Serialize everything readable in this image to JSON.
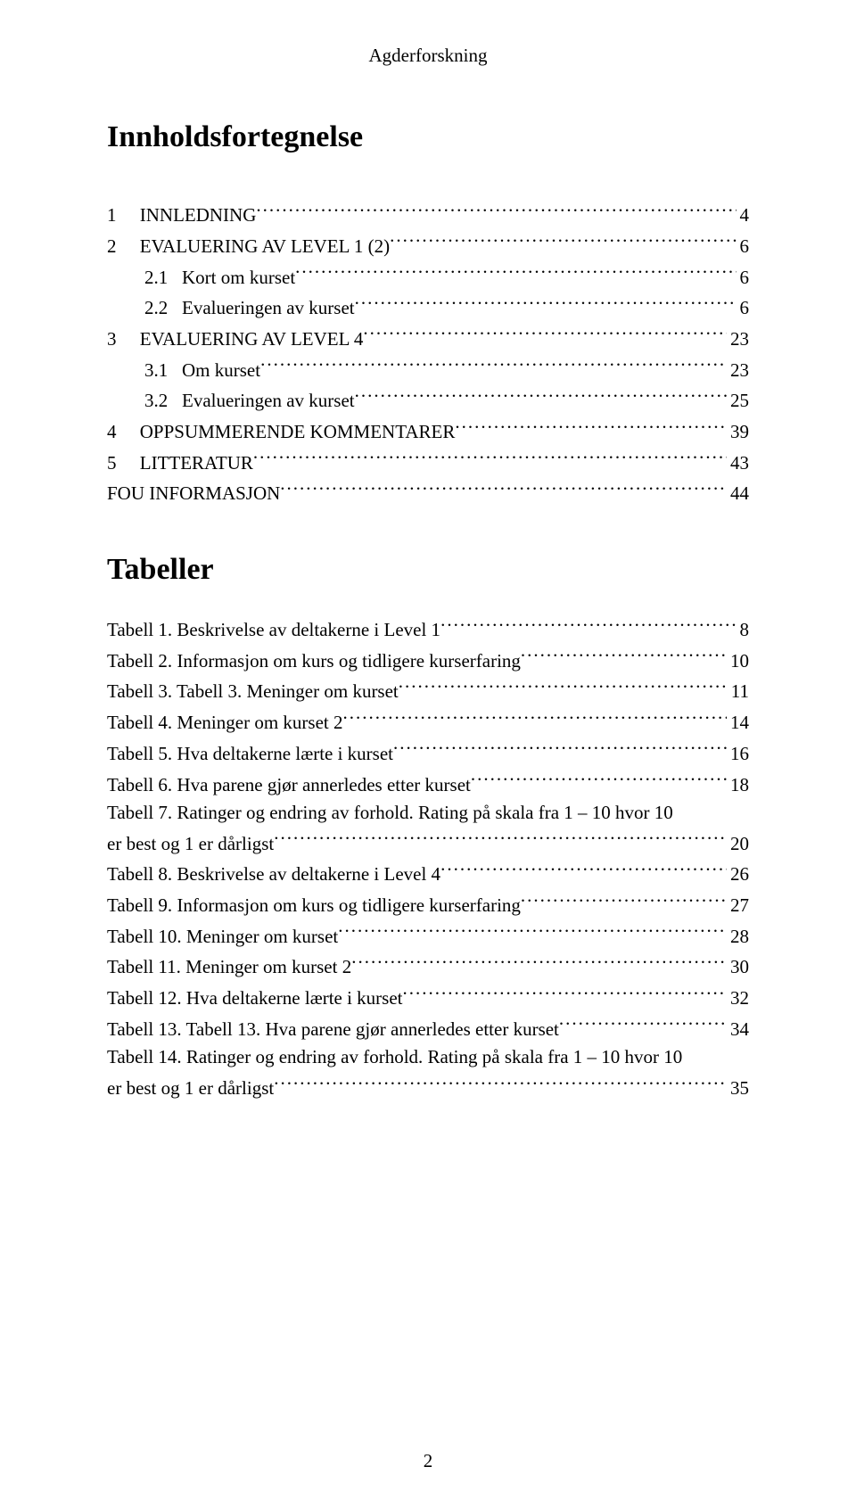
{
  "header": "Agderforskning",
  "title": "Innholdsfortegnelse",
  "toc": [
    {
      "num": "1",
      "label": "INNLEDNING",
      "page": "4",
      "indent": 0,
      "caps": true
    },
    {
      "num": "2",
      "label": "EVALUERING AV LEVEL 1 (2)",
      "page": "6",
      "indent": 0,
      "caps": true
    },
    {
      "num": "2.1",
      "label": "Kort om kurset",
      "page": "6",
      "indent": 1,
      "caps": false
    },
    {
      "num": "2.2",
      "label": "Evalueringen av kurset",
      "page": "6",
      "indent": 1,
      "caps": false
    },
    {
      "num": "3",
      "label": "EVALUERING AV LEVEL 4",
      "page": "23",
      "indent": 0,
      "caps": true
    },
    {
      "num": "3.1",
      "label": "Om kurset",
      "page": "23",
      "indent": 1,
      "caps": false
    },
    {
      "num": "3.2",
      "label": "Evalueringen av kurset",
      "page": "25",
      "indent": 1,
      "caps": false
    },
    {
      "num": "4",
      "label": "OPPSUMMERENDE KOMMENTARER",
      "page": "39",
      "indent": 0,
      "caps": true
    },
    {
      "num": "5",
      "label": "LITTERATUR",
      "page": "43",
      "indent": 0,
      "caps": true
    },
    {
      "num": "",
      "label": "FOU INFORMASJON",
      "page": "44",
      "indent": 0,
      "caps": true
    }
  ],
  "tables_title": "Tabeller",
  "tables": [
    {
      "text": "Tabell 1. Beskrivelse av deltakerne i Level 1",
      "page": "8"
    },
    {
      "text": "Tabell 2. Informasjon om kurs og tidligere kurserfaring",
      "page": "10"
    },
    {
      "text": "Tabell 3. Tabell 3. Meninger om kurset",
      "page": "11"
    },
    {
      "text": "Tabell 4. Meninger om kurset 2",
      "page": "14"
    },
    {
      "text": "Tabell 5. Hva deltakerne lærte i kurset",
      "page": "16"
    },
    {
      "text": "Tabell 6. Hva parene gjør annerledes etter kurset",
      "page": "18"
    },
    {
      "wrap": true,
      "line1": "Tabell 7. Ratinger og endring av forhold. Rating på skala fra 1 – 10 hvor 10",
      "line2": "er best og 1 er dårligst",
      "page": "20"
    },
    {
      "text": "Tabell 8. Beskrivelse av deltakerne i Level 4",
      "page": "26"
    },
    {
      "text": "Tabell 9. Informasjon om kurs og tidligere kurserfaring",
      "page": "27"
    },
    {
      "text": "Tabell 10. Meninger om kurset",
      "page": "28"
    },
    {
      "text": "Tabell 11. Meninger om kurset 2",
      "page": "30"
    },
    {
      "text": "Tabell 12. Hva deltakerne lærte i kurset",
      "page": "32"
    },
    {
      "text": "Tabell 13. Tabell 13. Hva parene gjør annerledes etter kurset",
      "page": "34"
    },
    {
      "wrap": true,
      "line1": "Tabell 14. Ratinger og endring av forhold. Rating på skala fra 1 – 10 hvor 10",
      "line2": "er best og 1 er dårligst",
      "page": "35"
    }
  ],
  "page_number": "2",
  "colors": {
    "text": "#000000",
    "background": "#ffffff"
  },
  "typography": {
    "family": "Times New Roman",
    "body_size_pt": 16,
    "title_size_pt": 26
  }
}
